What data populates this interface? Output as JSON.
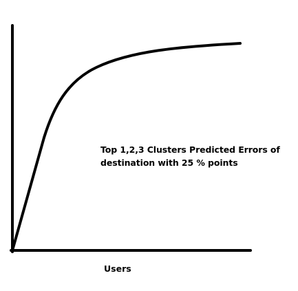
{
  "diagram": {
    "annotation": {
      "line1": "Top 1,2,3 Clusters Predicted Errors of",
      "line2": "destination with 25 % points"
    },
    "x_axis_label": "Users",
    "stroke_color": "#000000",
    "background_color": "#ffffff"
  }
}
